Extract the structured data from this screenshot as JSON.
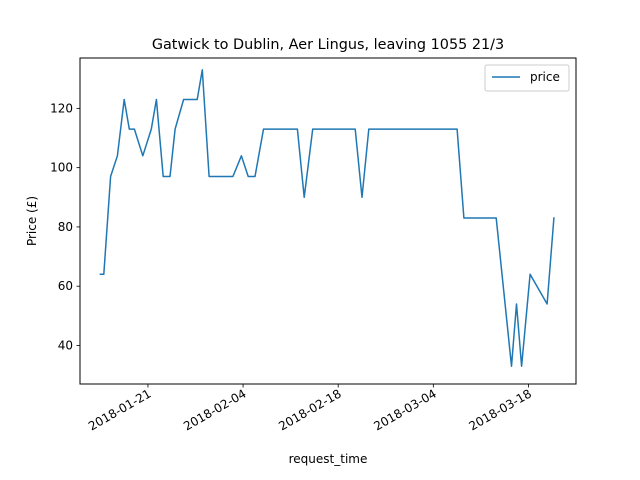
{
  "chart_data": {
    "type": "line",
    "title": "Gatwick to Dublin, Aer Lingus, leaving 1055 21/3",
    "xlabel": "request_time",
    "ylabel": "Price (£)",
    "x_type": "date",
    "xlim": [
      "2018-01-11",
      "2018-03-25"
    ],
    "ylim": [
      27,
      137
    ],
    "x_ticks": [
      "2018-01-21",
      "2018-02-04",
      "2018-02-18",
      "2018-03-04",
      "2018-03-18"
    ],
    "y_ticks": [
      40,
      60,
      80,
      100,
      120
    ],
    "legend": {
      "position": "top-right",
      "entries": [
        "price"
      ]
    },
    "grid": false,
    "series": [
      {
        "name": "price",
        "color": "#1f77b4",
        "points": [
          [
            "2018-01-14T00:00",
            64
          ],
          [
            "2018-01-14T12:00",
            64
          ],
          [
            "2018-01-15T12:00",
            97
          ],
          [
            "2018-01-16T12:00",
            104
          ],
          [
            "2018-01-17T12:00",
            123
          ],
          [
            "2018-01-18T06:00",
            113
          ],
          [
            "2018-01-19T00:00",
            113
          ],
          [
            "2018-01-20T06:00",
            104
          ],
          [
            "2018-01-21T12:00",
            113
          ],
          [
            "2018-01-22T06:00",
            123
          ],
          [
            "2018-01-23T06:00",
            97
          ],
          [
            "2018-01-24T06:00",
            97
          ],
          [
            "2018-01-25T00:00",
            113
          ],
          [
            "2018-01-26T06:00",
            123
          ],
          [
            "2018-01-28T06:00",
            123
          ],
          [
            "2018-01-29T00:00",
            133
          ],
          [
            "2018-01-30T00:00",
            97
          ],
          [
            "2018-02-02T12:00",
            97
          ],
          [
            "2018-02-03T18:00",
            104
          ],
          [
            "2018-02-04T18:00",
            97
          ],
          [
            "2018-02-05T18:00",
            97
          ],
          [
            "2018-02-07T00:00",
            113
          ],
          [
            "2018-02-12T00:00",
            113
          ],
          [
            "2018-02-13T00:00",
            90
          ],
          [
            "2018-02-14T06:00",
            113
          ],
          [
            "2018-02-20T12:00",
            113
          ],
          [
            "2018-02-21T12:00",
            90
          ],
          [
            "2018-02-22T12:00",
            113
          ],
          [
            "2018-03-07T12:00",
            113
          ],
          [
            "2018-03-08T12:00",
            83
          ],
          [
            "2018-03-13T06:00",
            83
          ],
          [
            "2018-03-15T12:00",
            33
          ],
          [
            "2018-03-16T06:00",
            54
          ],
          [
            "2018-03-17T00:00",
            33
          ],
          [
            "2018-03-18T06:00",
            64
          ],
          [
            "2018-03-20T18:00",
            54
          ],
          [
            "2018-03-21T18:00",
            83
          ]
        ]
      }
    ]
  }
}
